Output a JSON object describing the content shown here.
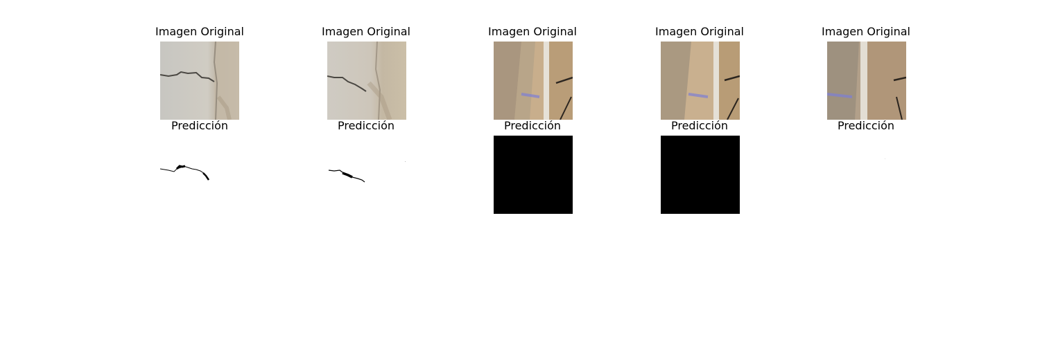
{
  "panels": [
    {
      "original_title": "Imagen Original",
      "prediction_title": "Predicción",
      "scene": "crack",
      "prediction": "crack-mask"
    },
    {
      "original_title": "Imagen Original",
      "prediction_title": "Predicción",
      "scene": "crack-variant",
      "prediction": "crack-mask-variant"
    },
    {
      "original_title": "Imagen Original",
      "prediction_title": "Predicción",
      "scene": "road-line",
      "prediction": "all-black"
    },
    {
      "original_title": "Imagen Original",
      "prediction_title": "Predicción",
      "scene": "road-line-variant",
      "prediction": "all-black"
    },
    {
      "original_title": "Imagen Original",
      "prediction_title": "Predicción",
      "scene": "road-line-shadow",
      "prediction": "empty"
    }
  ],
  "colors": {
    "background": "#ffffff",
    "mask_black": "#000000",
    "concrete": "#c9c6bf",
    "sand": "#c2ab8a"
  }
}
